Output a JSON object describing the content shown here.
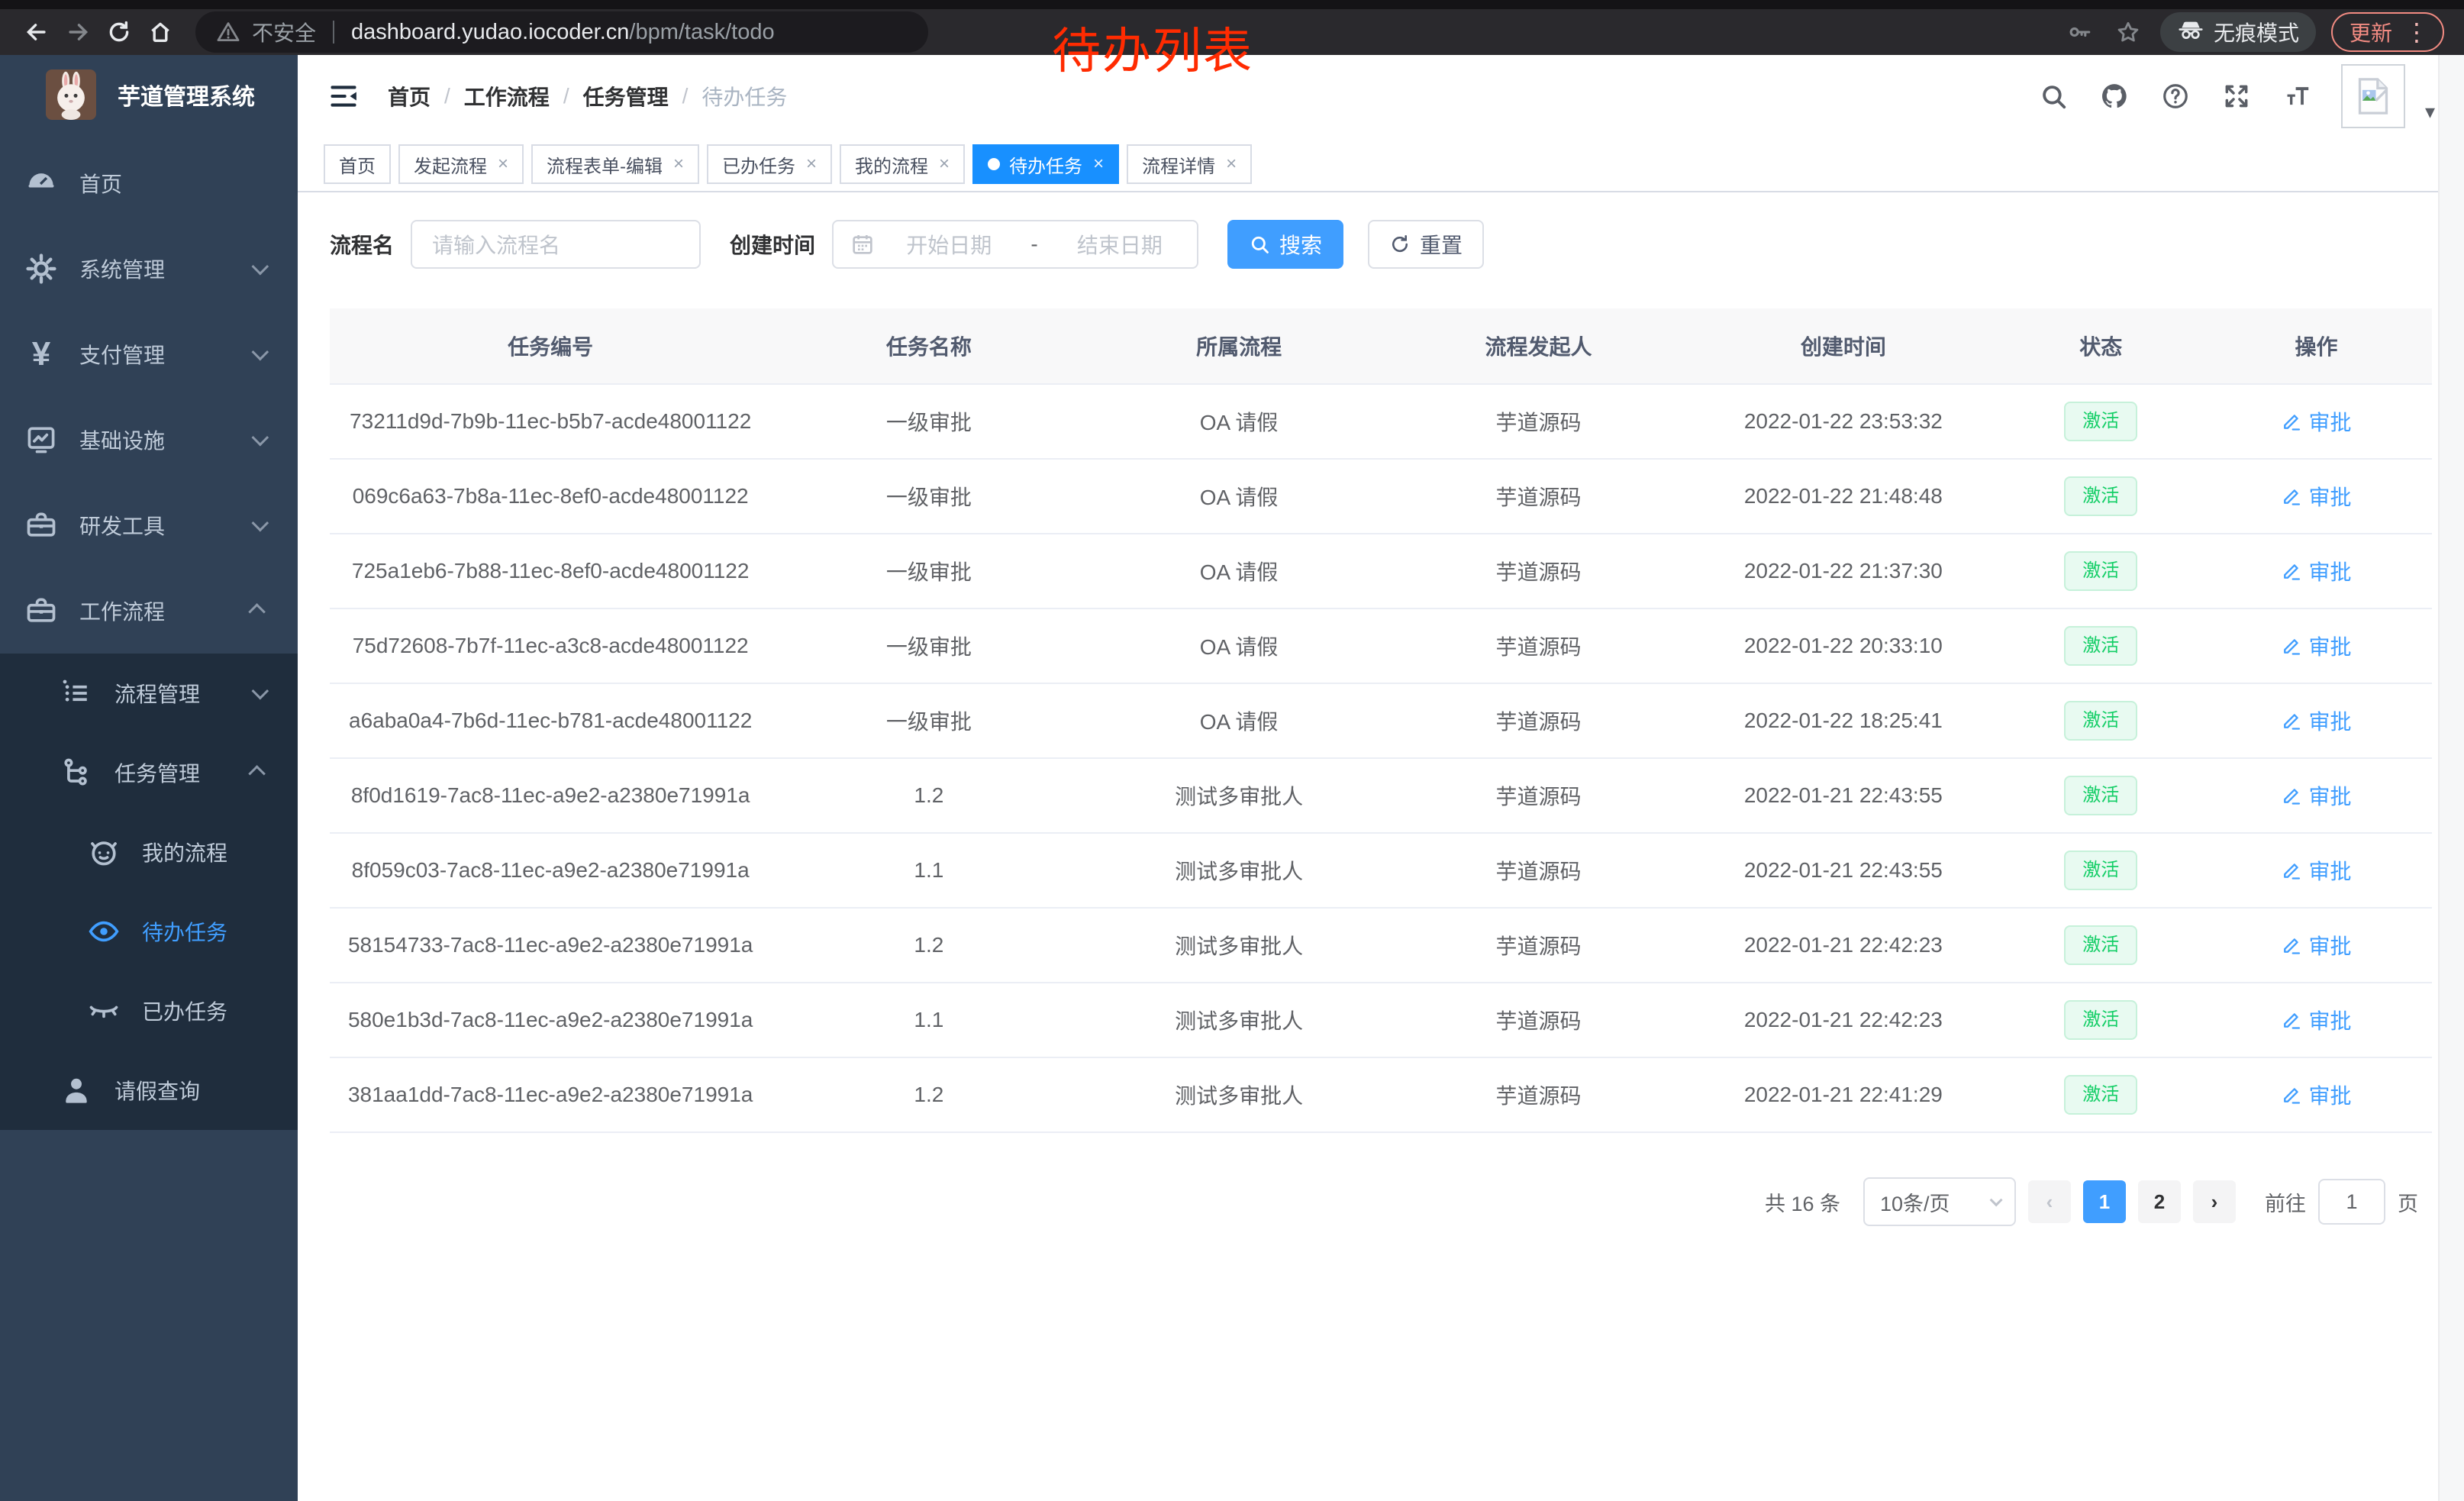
{
  "overlay": {
    "title": "待办列表"
  },
  "browser": {
    "security_label": "不安全",
    "url_host": "dashboard.yudao.iocoder.cn",
    "url_path": "/bpm/task/todo",
    "incognito_label": "无痕模式",
    "update_label": "更新"
  },
  "sidebar": {
    "app_title": "芋道管理系统",
    "menu": [
      {
        "key": "home",
        "label": "首页",
        "icon": "dashboard-icon",
        "expandable": false
      },
      {
        "key": "system",
        "label": "系统管理",
        "icon": "gear-icon",
        "expandable": true
      },
      {
        "key": "payment",
        "label": "支付管理",
        "icon": "yen-icon",
        "expandable": true
      },
      {
        "key": "infra",
        "label": "基础设施",
        "icon": "infra-icon",
        "expandable": true
      },
      {
        "key": "devtools",
        "label": "研发工具",
        "icon": "toolbox-icon",
        "expandable": true
      },
      {
        "key": "workflow",
        "label": "工作流程",
        "icon": "briefcase-icon",
        "expandable": true,
        "expanded": true
      }
    ],
    "submenu": [
      {
        "key": "process-mgmt",
        "label": "流程管理",
        "icon": "list-icon",
        "level": 2,
        "expandable": true
      },
      {
        "key": "task-mgmt",
        "label": "任务管理",
        "icon": "tree-icon",
        "level": 2,
        "expandable": true,
        "expanded": true
      },
      {
        "key": "my-process",
        "label": "我的流程",
        "icon": "robot-icon",
        "level": 3
      },
      {
        "key": "todo-task",
        "label": "待办任务",
        "icon": "eye-icon",
        "level": 3,
        "active": true
      },
      {
        "key": "done-task",
        "label": "已办任务",
        "icon": "eye-closed-icon",
        "level": 3
      },
      {
        "key": "leave-query",
        "label": "请假查询",
        "icon": "person-icon",
        "level": 2
      }
    ]
  },
  "breadcrumb": [
    "首页",
    "工作流程",
    "任务管理",
    "待办任务"
  ],
  "tabs": [
    {
      "key": "home",
      "label": "首页",
      "closable": false,
      "active": false
    },
    {
      "key": "start-process",
      "label": "发起流程",
      "closable": true,
      "active": false
    },
    {
      "key": "form-edit",
      "label": "流程表单-编辑",
      "closable": true,
      "active": false
    },
    {
      "key": "done-task",
      "label": "已办任务",
      "closable": true,
      "active": false
    },
    {
      "key": "my-process",
      "label": "我的流程",
      "closable": true,
      "active": false
    },
    {
      "key": "todo-task",
      "label": "待办任务",
      "closable": true,
      "active": true
    },
    {
      "key": "process-detail",
      "label": "流程详情",
      "closable": true,
      "active": false
    }
  ],
  "filters": {
    "name_label": "流程名",
    "name_placeholder": "请输入流程名",
    "time_label": "创建时间",
    "start_placeholder": "开始日期",
    "range_separator": "-",
    "end_placeholder": "结束日期",
    "search_label": "搜索",
    "reset_label": "重置"
  },
  "table": {
    "columns": [
      "任务编号",
      "任务名称",
      "所属流程",
      "流程发起人",
      "创建时间",
      "状态",
      "操作"
    ],
    "status_label": "激活",
    "action_label": "审批",
    "rows": [
      {
        "id": "73211d9d-7b9b-11ec-b5b7-acde48001122",
        "name": "一级审批",
        "process": "OA 请假",
        "starter": "芋道源码",
        "time": "2022-01-22 23:53:32"
      },
      {
        "id": "069c6a63-7b8a-11ec-8ef0-acde48001122",
        "name": "一级审批",
        "process": "OA 请假",
        "starter": "芋道源码",
        "time": "2022-01-22 21:48:48"
      },
      {
        "id": "725a1eb6-7b88-11ec-8ef0-acde48001122",
        "name": "一级审批",
        "process": "OA 请假",
        "starter": "芋道源码",
        "time": "2022-01-22 21:37:30"
      },
      {
        "id": "75d72608-7b7f-11ec-a3c8-acde48001122",
        "name": "一级审批",
        "process": "OA 请假",
        "starter": "芋道源码",
        "time": "2022-01-22 20:33:10"
      },
      {
        "id": "a6aba0a4-7b6d-11ec-b781-acde48001122",
        "name": "一级审批",
        "process": "OA 请假",
        "starter": "芋道源码",
        "time": "2022-01-22 18:25:41"
      },
      {
        "id": "8f0d1619-7ac8-11ec-a9e2-a2380e71991a",
        "name": "1.2",
        "process": "测试多审批人",
        "starter": "芋道源码",
        "time": "2022-01-21 22:43:55"
      },
      {
        "id": "8f059c03-7ac8-11ec-a9e2-a2380e71991a",
        "name": "1.1",
        "process": "测试多审批人",
        "starter": "芋道源码",
        "time": "2022-01-21 22:43:55"
      },
      {
        "id": "58154733-7ac8-11ec-a9e2-a2380e71991a",
        "name": "1.2",
        "process": "测试多审批人",
        "starter": "芋道源码",
        "time": "2022-01-21 22:42:23"
      },
      {
        "id": "580e1b3d-7ac8-11ec-a9e2-a2380e71991a",
        "name": "1.1",
        "process": "测试多审批人",
        "starter": "芋道源码",
        "time": "2022-01-21 22:42:23"
      },
      {
        "id": "381aa1dd-7ac8-11ec-a9e2-a2380e71991a",
        "name": "1.2",
        "process": "测试多审批人",
        "starter": "芋道源码",
        "time": "2022-01-21 22:41:29"
      }
    ]
  },
  "pagination": {
    "total_label": "共 16 条",
    "page_size": "10条/页",
    "prev_label": "‹",
    "next_label": "›",
    "pages": [
      "1",
      "2"
    ],
    "active_page": "1",
    "goto_label": "前往",
    "goto_value": "1",
    "page_label": "页"
  },
  "colors": {
    "accent": "#409eff",
    "tab_active": "#1890ff",
    "sidebar_bg": "#304156",
    "submenu_bg": "#1f2d3d",
    "status_success_text": "#13ce66",
    "status_success_bg": "#e8faf1",
    "annotation_red": "#ff2b01"
  }
}
